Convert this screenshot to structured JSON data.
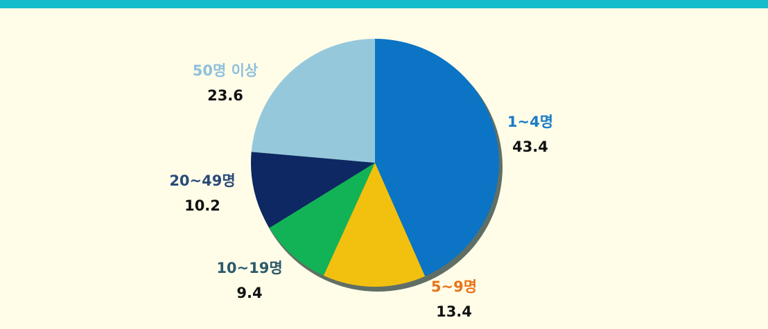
{
  "chart_data": {
    "type": "pie",
    "categories": [
      "1~4명",
      "5~9명",
      "10~19명",
      "20~49명",
      "50명 이상"
    ],
    "values": [
      43.4,
      13.4,
      9.4,
      10.2,
      23.6
    ],
    "colors": [
      "#0b74c4",
      "#f2c10f",
      "#12b356",
      "#0d2862",
      "#96c8dc"
    ],
    "label_colors": [
      "#1a7cc8",
      "#e8731a",
      "#2b5a6a",
      "#2a4a7a",
      "#8fc0dc"
    ]
  }
}
